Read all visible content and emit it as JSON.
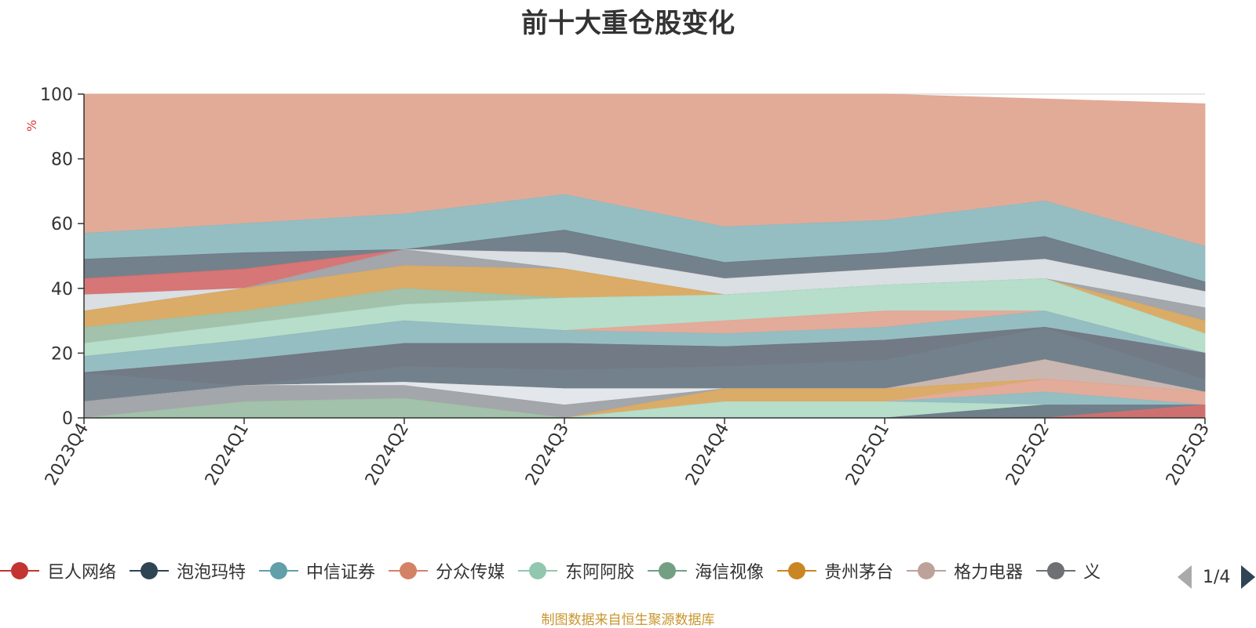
{
  "chart_data": {
    "type": "area",
    "title": "前十大重仓股变化",
    "ylabel": "%",
    "ylim": [
      0,
      100
    ],
    "yticks": [
      0,
      20,
      40,
      60,
      80,
      100
    ],
    "categories": [
      "2023Q4",
      "2024Q1",
      "2024Q2",
      "2024Q3",
      "2024Q4",
      "2025Q1",
      "2025Q2",
      "2025Q3"
    ],
    "stacked": true,
    "grid": true,
    "legend_position": "bottom",
    "layers": [
      {
        "color": "#9e9a97",
        "values": [
          0,
          5,
          6,
          0,
          0,
          0,
          0,
          0
        ]
      },
      {
        "color": "#7d8b95",
        "values": [
          5,
          5,
          5,
          5,
          9,
          5,
          4,
          5
        ]
      },
      {
        "color": "#6c7a86",
        "values": [
          9,
          9,
          13,
          18,
          9,
          4,
          0,
          0
        ]
      },
      {
        "color": "#d46f6f",
        "values": [
          0,
          0,
          0,
          0,
          0,
          0,
          0,
          0
        ]
      },
      {
        "color": "#e1e4e8",
        "values": [
          0,
          0,
          0,
          0,
          0,
          0,
          0,
          0
        ]
      },
      {
        "color": "#b2dcc8",
        "values": [
          5,
          5,
          6,
          3,
          5,
          0,
          0,
          0
        ]
      },
      {
        "color": "#d9a860",
        "values": [
          0,
          0,
          0,
          0,
          0,
          0,
          0,
          0
        ]
      },
      {
        "color": "#8fbac0",
        "values": [
          5,
          5,
          6,
          6,
          4,
          4,
          5,
          0
        ]
      },
      {
        "color": "#e2a693",
        "values": [
          0,
          0,
          0,
          0,
          0,
          0,
          0,
          0
        ]
      },
      {
        "color": "#6c7a86",
        "values": [
          0,
          0,
          0,
          0,
          0,
          0,
          0,
          0
        ]
      }
    ],
    "bands": [
      {
        "color": "#e0a692",
        "bottom": [
          57,
          60,
          63,
          69,
          59,
          61,
          67,
          53
        ],
        "top": [
          100,
          100,
          100,
          100,
          100,
          100,
          98.5,
          97
        ]
      },
      {
        "color": "#8fbac0",
        "bottom": [
          49,
          51,
          52,
          58,
          48,
          51,
          56,
          42
        ],
        "top": [
          57,
          60,
          63,
          69,
          59,
          61,
          67,
          53
        ]
      },
      {
        "color": "#6c7a86",
        "bottom": [
          43,
          46,
          52,
          51,
          43,
          46,
          49,
          39
        ],
        "top": [
          49,
          51,
          52,
          58,
          48,
          51,
          56,
          42
        ]
      },
      {
        "color": "#d46f6f",
        "bottom": [
          38,
          40,
          52,
          51,
          43,
          46,
          49,
          39
        ],
        "top": [
          43,
          46,
          52,
          51,
          43,
          46,
          49,
          39
        ]
      },
      {
        "color": "#d7dde2",
        "bottom": [
          33,
          40,
          52,
          46,
          38,
          41,
          43,
          34
        ],
        "top": [
          38,
          40,
          52,
          51,
          43,
          46,
          49,
          39
        ]
      },
      {
        "color": "#9ea1a5",
        "bottom": [
          33,
          40,
          47,
          46,
          38,
          41,
          43,
          30
        ],
        "top": [
          33,
          40,
          52,
          46,
          38,
          41,
          43,
          34
        ]
      },
      {
        "color": "#d9a860",
        "bottom": [
          28,
          33,
          40,
          37,
          38,
          41,
          43,
          26
        ],
        "top": [
          33,
          40,
          47,
          46,
          38,
          41,
          43,
          30
        ]
      },
      {
        "color": "#9dbfa6",
        "bottom": [
          23,
          29,
          35,
          37,
          38,
          41,
          43,
          26
        ],
        "top": [
          28,
          33,
          40,
          37,
          38,
          41,
          43,
          26
        ]
      },
      {
        "color": "#b2dcc8",
        "bottom": [
          19,
          24,
          30,
          27,
          30,
          33,
          33,
          20
        ],
        "top": [
          23,
          29,
          35,
          37,
          38,
          41,
          43,
          26
        ]
      },
      {
        "color": "#e2a693",
        "bottom": [
          19,
          24,
          30,
          27,
          26,
          28,
          33,
          20
        ],
        "top": [
          19,
          24,
          30,
          27,
          30,
          33,
          33,
          20
        ]
      },
      {
        "color": "#8fbac0",
        "bottom": [
          14,
          18,
          23,
          23,
          22,
          24,
          28,
          20
        ],
        "top": [
          19,
          24,
          30,
          27,
          26,
          28,
          33,
          20
        ]
      },
      {
        "color": "#d46f6f",
        "bottom": [
          14,
          10,
          16,
          15,
          16,
          18,
          28,
          12
        ],
        "top": [
          14,
          18,
          23,
          23,
          22,
          24,
          28,
          20
        ]
      },
      {
        "color": "#6c7a86",
        "bottom": [
          5,
          10,
          11,
          9,
          9,
          9,
          18,
          8
        ],
        "top": [
          14,
          18,
          23,
          23,
          22,
          24,
          28,
          20
        ]
      },
      {
        "color": "#c8b3ad",
        "bottom": [
          5,
          10,
          11,
          9,
          9,
          9,
          12,
          8
        ],
        "top": [
          5,
          10,
          11,
          9,
          9,
          9,
          18,
          8
        ]
      },
      {
        "color": "#e1e5e9",
        "bottom": [
          5,
          10,
          10,
          4,
          9,
          9,
          12,
          8
        ],
        "top": [
          5,
          10,
          11,
          9,
          9,
          9,
          12,
          8
        ]
      },
      {
        "color": "#9ea1a5",
        "bottom": [
          0,
          5,
          6,
          0,
          9,
          9,
          12,
          8
        ],
        "top": [
          5,
          10,
          10,
          4,
          9,
          9,
          12,
          8
        ]
      },
      {
        "color": "#d9a860",
        "bottom": [
          0,
          5,
          6,
          0,
          5,
          5,
          12,
          8
        ],
        "top": [
          0,
          5,
          6,
          0,
          9,
          9,
          12,
          8
        ]
      },
      {
        "color": "#e2a693",
        "bottom": [
          0,
          5,
          6,
          0,
          5,
          5,
          8,
          4
        ],
        "top": [
          0,
          5,
          6,
          0,
          5,
          5,
          12,
          8
        ]
      },
      {
        "color": "#8fbac0",
        "bottom": [
          0,
          5,
          6,
          0,
          5,
          5,
          4,
          4
        ],
        "top": [
          0,
          5,
          6,
          0,
          5,
          5,
          8,
          4
        ]
      },
      {
        "color": "#9dbfa6",
        "bottom": [
          0,
          0,
          0,
          0,
          0,
          0,
          0,
          0
        ],
        "top": [
          0,
          5,
          6,
          0,
          0,
          0,
          0,
          0
        ]
      },
      {
        "color": "#b2dcc8",
        "bottom": [
          0,
          0,
          0,
          0,
          0,
          0,
          0,
          0
        ],
        "top": [
          0,
          0,
          0,
          0,
          5,
          5,
          4,
          0
        ]
      },
      {
        "color": "#6c7a86",
        "bottom": [
          0,
          0,
          0,
          0,
          0,
          0,
          0,
          0
        ],
        "top": [
          0,
          0,
          0,
          0,
          0,
          0,
          4,
          4
        ]
      },
      {
        "color": "#d46f6f",
        "bottom": [
          0,
          0,
          0,
          0,
          0,
          0,
          0,
          0
        ],
        "top": [
          0,
          0,
          0,
          0,
          0,
          0,
          0,
          4
        ]
      }
    ]
  },
  "legend": {
    "items": [
      {
        "label": "巨人网络",
        "color": "#c23531"
      },
      {
        "label": "泡泡玛特",
        "color": "#2f4554"
      },
      {
        "label": "中信证券",
        "color": "#61a0a8"
      },
      {
        "label": "分众传媒",
        "color": "#d48265"
      },
      {
        "label": "东阿阿胶",
        "color": "#91c7ae"
      },
      {
        "label": "海信视像",
        "color": "#749f83"
      },
      {
        "label": "贵州茅台",
        "color": "#ca8622"
      },
      {
        "label": "格力电器",
        "color": "#bda29a"
      },
      {
        "label": "义",
        "color": "#6e7074"
      }
    ],
    "pager": "1/4"
  },
  "footer": "制图数据来自恒生聚源数据库"
}
